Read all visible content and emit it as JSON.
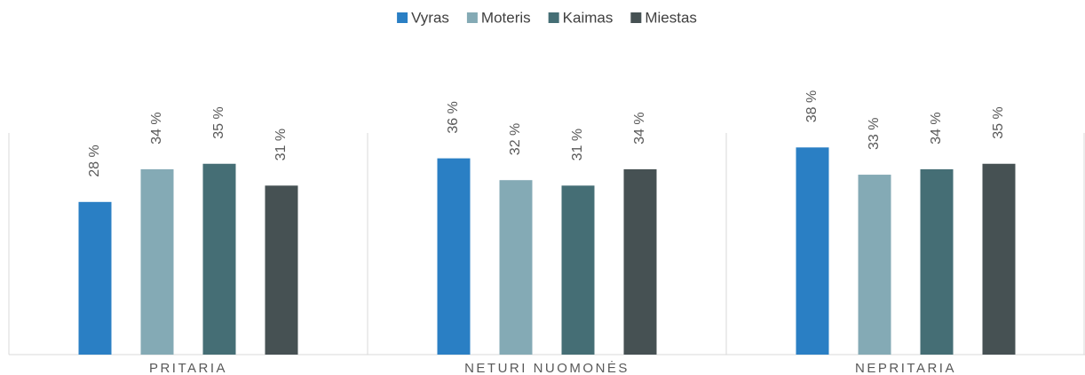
{
  "chart_data": {
    "type": "bar",
    "categories": [
      "PRITARIA",
      "NETURI NUOMONĖS",
      "NEPRITARIA"
    ],
    "series": [
      {
        "name": "Vyras",
        "color": "#2a7fc4",
        "values": [
          28,
          36,
          38
        ],
        "value_labels": [
          "28 %",
          "36 %",
          "38 %"
        ]
      },
      {
        "name": "Moteris",
        "color": "#84aab5",
        "values": [
          34,
          32,
          33
        ],
        "value_labels": [
          "34 %",
          "32 %",
          "33 %"
        ]
      },
      {
        "name": "Kaimas",
        "color": "#456e75",
        "values": [
          35,
          31,
          34
        ],
        "value_labels": [
          "35 %",
          "31 %",
          "34 %"
        ]
      },
      {
        "name": "Miestas",
        "color": "#465153",
        "values": [
          31,
          34,
          35
        ],
        "value_labels": [
          "31 %",
          "34 %",
          "35 %"
        ]
      }
    ],
    "ylim": [
      0,
      40
    ],
    "legend": "top"
  }
}
